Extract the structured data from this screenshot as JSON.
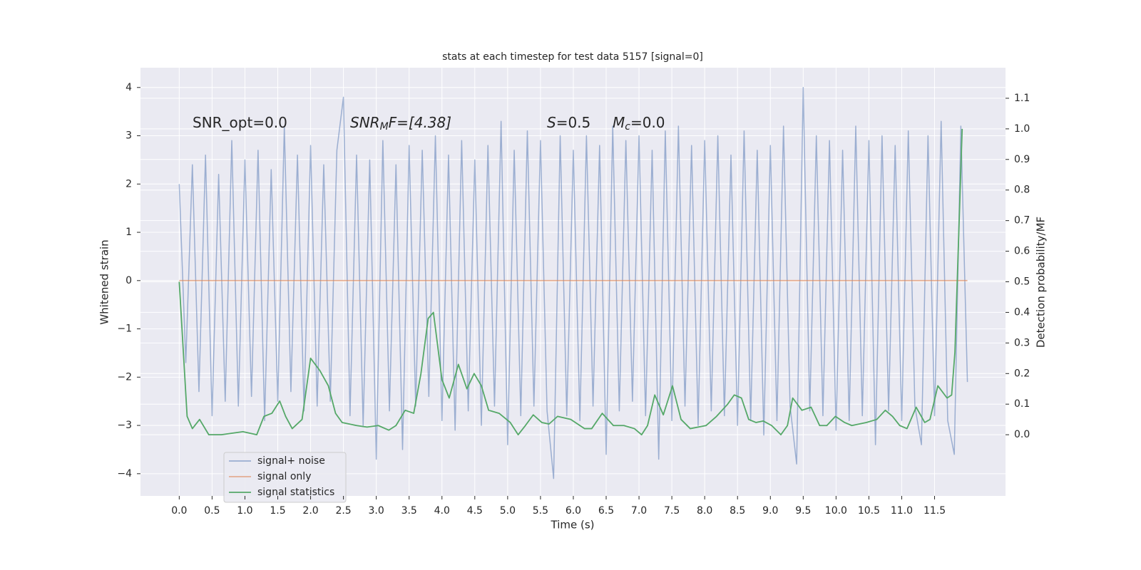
{
  "chart_data": {
    "type": "line",
    "title": "stats at each timestep for test data 5157 [signal=0]",
    "xlabel": "Time (s)",
    "ylabel": "Whitened strain",
    "y2label": "Detection probability/MF",
    "annotations": [
      [
        "SNR_opt=0.0"
      ],
      [
        "SNR",
        "M",
        "F=[4.38]"
      ],
      [
        "S",
        "=0.5"
      ],
      [
        "M",
        "c",
        "=0.0"
      ]
    ],
    "xlim": [
      -0.59,
      12.58
    ],
    "ylim": [
      -4.46,
      4.41
    ],
    "y2lim": [
      -0.2,
      1.2
    ],
    "xticks": [
      {
        "value": 0,
        "label": "0.0"
      },
      {
        "value": 0.5,
        "label": "0.5"
      },
      {
        "value": 1,
        "label": "1.0"
      },
      {
        "value": 1.5,
        "label": "1.5"
      },
      {
        "value": 2,
        "label": "2.0"
      },
      {
        "value": 2.5,
        "label": "2.5"
      },
      {
        "value": 3,
        "label": "3.0"
      },
      {
        "value": 3.5,
        "label": "3.5"
      },
      {
        "value": 4,
        "label": "4.0"
      },
      {
        "value": 4.5,
        "label": "4.5"
      },
      {
        "value": 5,
        "label": "5.0"
      },
      {
        "value": 5.5,
        "label": "5.5"
      },
      {
        "value": 6,
        "label": "6.0"
      },
      {
        "value": 6.5,
        "label": "6.5"
      },
      {
        "value": 7,
        "label": "7.0"
      },
      {
        "value": 7.5,
        "label": "7.5"
      },
      {
        "value": 8,
        "label": "8.0"
      },
      {
        "value": 8.5,
        "label": "8.5"
      },
      {
        "value": 9,
        "label": "9.0"
      },
      {
        "value": 9.5,
        "label": "9.5"
      },
      {
        "value": 10,
        "label": "10.0"
      },
      {
        "value": 10.5,
        "label": "10.5"
      },
      {
        "value": 11,
        "label": "11.0"
      },
      {
        "value": 11.5,
        "label": "11.5"
      }
    ],
    "yticks": [
      {
        "value": -4,
        "label": "−4"
      },
      {
        "value": -3,
        "label": "−3"
      },
      {
        "value": -2,
        "label": "−2"
      },
      {
        "value": -1,
        "label": "−1"
      },
      0,
      1,
      2,
      3,
      4
    ],
    "y2ticks": [
      {
        "value": 0,
        "label": "0.0"
      },
      {
        "value": 0.1,
        "label": "0.1"
      },
      {
        "value": 0.2,
        "label": "0.2"
      },
      {
        "value": 0.3,
        "label": "0.3"
      },
      {
        "value": 0.4,
        "label": "0.4"
      },
      {
        "value": 0.5,
        "label": "0.5"
      },
      {
        "value": 0.6,
        "label": "0.6"
      },
      {
        "value": 0.7,
        "label": "0.7"
      },
      {
        "value": 0.8,
        "label": "0.8"
      },
      {
        "value": 0.9,
        "label": "0.9"
      },
      {
        "value": 1,
        "label": "1.0"
      },
      {
        "value": 1.1,
        "label": "1.1"
      }
    ],
    "grid": true,
    "legend": "lower left",
    "series": [
      {
        "name": "signal+ noise",
        "color": "#4c72b0",
        "x": [
          0,
          0.1,
          0.2,
          0.3,
          0.4,
          0.5,
          0.6,
          0.7,
          0.8,
          0.9,
          1,
          1.1,
          1.2,
          1.3,
          1.4,
          1.5,
          1.6,
          1.7,
          1.8,
          1.9,
          2,
          2.1,
          2.2,
          2.3,
          2.4,
          2.5,
          2.6,
          2.7,
          2.8,
          2.9,
          3,
          3.1,
          3.2,
          3.3,
          3.4,
          3.5,
          3.6,
          3.7,
          3.8,
          3.9,
          4,
          4.1,
          4.2,
          4.3,
          4.4,
          4.5,
          4.6,
          4.7,
          4.8,
          4.9,
          5,
          5.1,
          5.2,
          5.3,
          5.4,
          5.5,
          5.6,
          5.7,
          5.8,
          5.9,
          6,
          6.1,
          6.2,
          6.3,
          6.4,
          6.5,
          6.6,
          6.7,
          6.8,
          6.9,
          7,
          7.1,
          7.2,
          7.3,
          7.4,
          7.5,
          7.6,
          7.7,
          7.8,
          7.9,
          8,
          8.1,
          8.2,
          8.3,
          8.4,
          8.5,
          8.6,
          8.7,
          8.8,
          8.9,
          9,
          9.1,
          9.2,
          9.3,
          9.4,
          9.5,
          9.6,
          9.7,
          9.8,
          9.9,
          10,
          10.1,
          10.2,
          10.3,
          10.4,
          10.5,
          10.6,
          10.7,
          10.8,
          10.9,
          11,
          11.1,
          11.2,
          11.3,
          11.4,
          11.5,
          11.6,
          11.7,
          11.8,
          11.9,
          12
        ],
        "values": [
          2.0,
          -1.7,
          2.4,
          -2.3,
          2.6,
          -2.8,
          2.2,
          -2.5,
          2.9,
          -2.6,
          2.5,
          -2.4,
          2.7,
          -2.9,
          2.3,
          -2.5,
          3.2,
          -2.3,
          2.6,
          -2.7,
          2.8,
          -2.6,
          2.4,
          -2.5,
          2.7,
          3.8,
          -2.8,
          2.6,
          -3.0,
          2.5,
          -3.7,
          2.9,
          -2.7,
          2.4,
          -3.5,
          2.8,
          -2.6,
          2.7,
          -2.4,
          3.0,
          -2.9,
          2.6,
          -3.1,
          2.9,
          -2.7,
          2.5,
          -3.0,
          2.8,
          -2.6,
          3.3,
          -3.4,
          2.7,
          -2.8,
          3.1,
          -2.6,
          2.9,
          -2.7,
          -4.1,
          3.0,
          -2.8,
          2.7,
          -2.9,
          3.0,
          -2.6,
          2.8,
          -3.6,
          3.2,
          -2.7,
          2.9,
          -2.5,
          3.0,
          -2.8,
          2.7,
          -3.7,
          3.1,
          -2.9,
          3.2,
          -2.6,
          2.8,
          -3.0,
          2.9,
          -2.7,
          3.0,
          -2.8,
          2.6,
          -3.0,
          3.1,
          -2.9,
          2.7,
          -3.2,
          2.8,
          -2.9,
          3.2,
          -2.6,
          -3.8,
          4.0,
          -2.7,
          3.0,
          -2.8,
          2.9,
          -3.1,
          2.7,
          -2.9,
          3.2,
          -2.8,
          2.9,
          -3.4,
          3.0,
          -2.7,
          2.8,
          -2.9,
          3.1,
          -2.6,
          -3.4,
          3.0,
          -2.8,
          3.3,
          -2.9,
          -3.6,
          3.2,
          -2.1
        ]
      },
      {
        "name": "signal only",
        "color": "#dd8452",
        "x": [
          0,
          12
        ],
        "values": [
          0,
          0
        ]
      },
      {
        "name": "signal statistics",
        "color": "#55a868",
        "axis": "y2",
        "x": [
          0,
          0.12,
          0.2,
          0.31,
          0.45,
          0.64,
          0.97,
          1.18,
          1.29,
          1.41,
          1.53,
          1.62,
          1.72,
          1.87,
          2.0,
          2.14,
          2.27,
          2.38,
          2.48,
          2.7,
          2.86,
          3.03,
          3.19,
          3.3,
          3.44,
          3.57,
          3.68,
          3.79,
          3.87,
          4.0,
          4.11,
          4.25,
          4.38,
          4.49,
          4.6,
          4.71,
          4.87,
          5.04,
          5.16,
          5.27,
          5.39,
          5.52,
          5.63,
          5.76,
          5.96,
          6.17,
          6.28,
          6.44,
          6.61,
          6.77,
          6.93,
          7.04,
          7.13,
          7.24,
          7.37,
          7.51,
          7.64,
          7.78,
          8.02,
          8.18,
          8.35,
          8.45,
          8.56,
          8.67,
          8.78,
          8.89,
          9.02,
          9.16,
          9.26,
          9.34,
          9.48,
          9.62,
          9.75,
          9.86,
          9.99,
          10.13,
          10.24,
          10.46,
          10.62,
          10.75,
          10.86,
          10.97,
          11.08,
          11.22,
          11.35,
          11.43,
          11.55,
          11.69,
          11.76,
          11.81,
          11.92
        ],
        "values": [
          0.5,
          0.06,
          0.02,
          0.05,
          0.0,
          0.0,
          0.01,
          0.0,
          0.06,
          0.07,
          0.11,
          0.06,
          0.02,
          0.05,
          0.25,
          0.21,
          0.16,
          0.07,
          0.04,
          0.03,
          0.025,
          0.03,
          0.015,
          0.03,
          0.08,
          0.07,
          0.2,
          0.38,
          0.4,
          0.18,
          0.12,
          0.23,
          0.15,
          0.2,
          0.16,
          0.08,
          0.07,
          0.04,
          0.0,
          0.03,
          0.065,
          0.04,
          0.035,
          0.06,
          0.05,
          0.02,
          0.02,
          0.07,
          0.03,
          0.03,
          0.02,
          0.0,
          0.03,
          0.13,
          0.065,
          0.16,
          0.05,
          0.02,
          0.03,
          0.06,
          0.1,
          0.13,
          0.12,
          0.05,
          0.04,
          0.045,
          0.03,
          0.0,
          0.03,
          0.12,
          0.08,
          0.09,
          0.03,
          0.03,
          0.06,
          0.04,
          0.03,
          0.04,
          0.05,
          0.08,
          0.06,
          0.03,
          0.02,
          0.09,
          0.04,
          0.05,
          0.16,
          0.12,
          0.13,
          0.27,
          1.0
        ]
      }
    ]
  }
}
